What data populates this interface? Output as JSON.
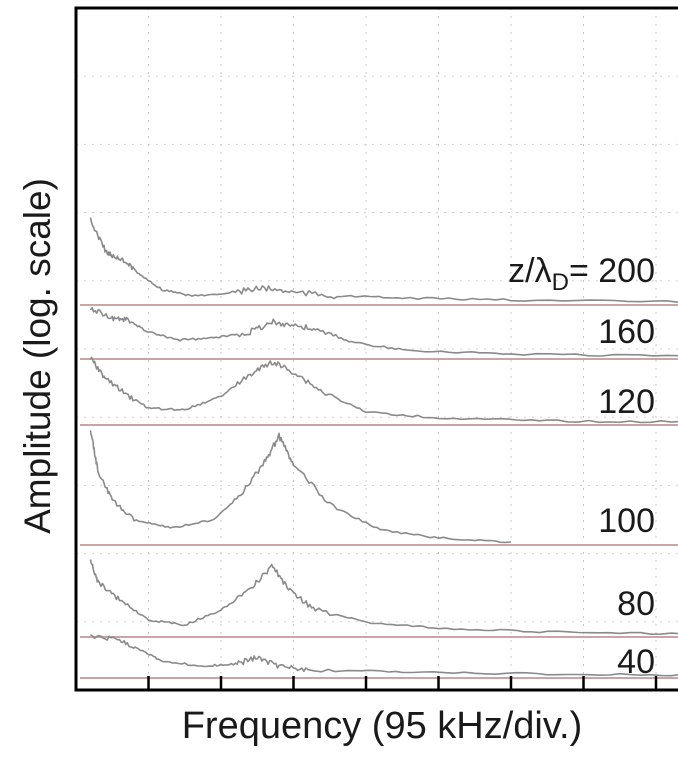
{
  "chart_data": {
    "type": "line",
    "title": "",
    "xlabel": "Frequency (95 kHz/div.)",
    "ylabel": "Amplitude (log. scale)",
    "x_divisions": 8,
    "y_scale": "log",
    "grid": true,
    "series_label_prefix": "z/λD= ",
    "series_label_prefix_text": "z/λ",
    "series_label_prefix_sub": "D",
    "series_label_prefix_eq": "= ",
    "series": [
      {
        "name": "200",
        "label": "200",
        "color": "#8a8a8a",
        "baseline_color": "#c9a5a5",
        "points": [
          [
            0.2,
            220
          ],
          [
            0.4,
            250
          ],
          [
            0.5,
            256
          ],
          [
            0.7,
            262
          ],
          [
            0.9,
            276
          ],
          [
            1.2,
            290
          ],
          [
            1.6,
            296
          ],
          [
            2.2,
            292
          ],
          [
            2.6,
            288
          ],
          [
            3.0,
            292
          ],
          [
            3.6,
            296
          ],
          [
            4.5,
            298
          ],
          [
            6.0,
            300
          ],
          [
            8.5,
            302
          ]
        ]
      },
      {
        "name": "160",
        "label": "160",
        "color": "#8a8a8a",
        "baseline_color": "#c9a5a5",
        "points": [
          [
            0.2,
            308
          ],
          [
            0.5,
            318
          ],
          [
            0.7,
            320
          ],
          [
            1.0,
            332
          ],
          [
            1.4,
            340
          ],
          [
            1.9,
            338
          ],
          [
            2.4,
            332
          ],
          [
            2.7,
            322
          ],
          [
            3.0,
            325
          ],
          [
            3.3,
            330
          ],
          [
            3.8,
            342
          ],
          [
            4.5,
            350
          ],
          [
            6.0,
            354
          ],
          [
            8.5,
            356
          ]
        ]
      },
      {
        "name": "120",
        "label": "120",
        "color": "#8a8a8a",
        "baseline_color": "#c9a5a5",
        "points": [
          [
            0.2,
            358
          ],
          [
            0.4,
            378
          ],
          [
            0.7,
            395
          ],
          [
            1.0,
            408
          ],
          [
            1.5,
            410
          ],
          [
            2.0,
            396
          ],
          [
            2.4,
            375
          ],
          [
            2.7,
            362
          ],
          [
            3.0,
            372
          ],
          [
            3.4,
            392
          ],
          [
            4.0,
            412
          ],
          [
            5.0,
            418
          ],
          [
            6.5,
            421
          ],
          [
            8.5,
            422
          ]
        ]
      },
      {
        "name": "100",
        "label": "100",
        "color": "#8a8a8a",
        "baseline_color": "#c9a5a5",
        "points": [
          [
            0.2,
            430
          ],
          [
            0.3,
            470
          ],
          [
            0.5,
            500
          ],
          [
            0.8,
            520
          ],
          [
            1.3,
            528
          ],
          [
            1.9,
            520
          ],
          [
            2.3,
            492
          ],
          [
            2.6,
            462
          ],
          [
            2.8,
            436
          ],
          [
            3.0,
            465
          ],
          [
            3.5,
            505
          ],
          [
            4.2,
            530
          ],
          [
            5.0,
            538
          ],
          [
            6.0,
            542
          ]
        ]
      },
      {
        "name": "80",
        "label": "80",
        "color": "#8a8a8a",
        "baseline_color": "#c9a5a5",
        "points": [
          [
            0.2,
            560
          ],
          [
            0.3,
            582
          ],
          [
            0.6,
            600
          ],
          [
            1.0,
            620
          ],
          [
            1.5,
            625
          ],
          [
            2.0,
            610
          ],
          [
            2.4,
            590
          ],
          [
            2.7,
            566
          ],
          [
            2.95,
            590
          ],
          [
            3.3,
            610
          ],
          [
            4.0,
            622
          ],
          [
            5.0,
            628
          ],
          [
            6.5,
            632
          ],
          [
            8.5,
            634
          ]
        ]
      },
      {
        "name": "40",
        "label": "40",
        "color": "#8a8a8a",
        "baseline_color": "#c9a5a5",
        "points": [
          [
            0.2,
            636
          ],
          [
            0.6,
            640
          ],
          [
            0.9,
            650
          ],
          [
            1.2,
            662
          ],
          [
            1.8,
            666
          ],
          [
            2.2,
            664
          ],
          [
            2.5,
            658
          ],
          [
            2.8,
            666
          ],
          [
            3.2,
            670
          ],
          [
            4.5,
            672
          ],
          [
            6.5,
            674
          ],
          [
            8.5,
            675
          ]
        ]
      }
    ]
  }
}
